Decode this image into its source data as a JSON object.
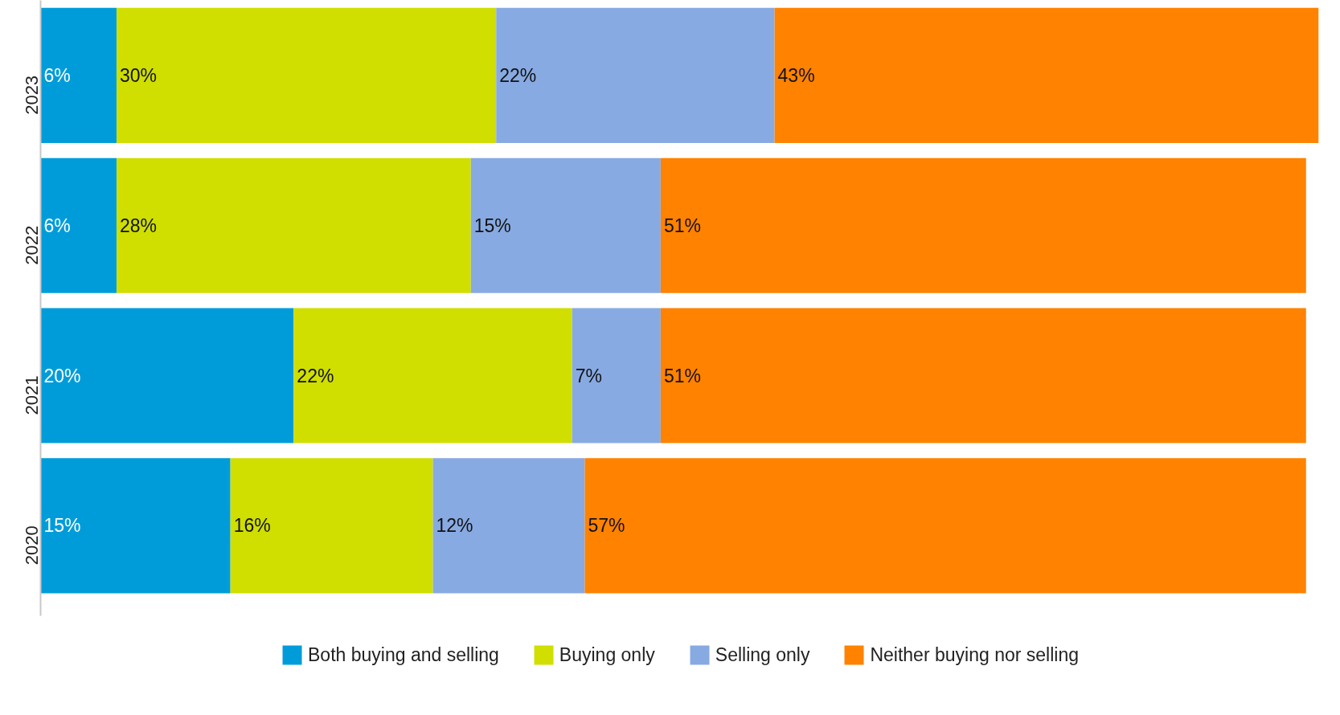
{
  "chart_data": {
    "type": "bar",
    "orientation": "horizontal",
    "stacked": true,
    "legend": "bottom",
    "grid": false,
    "tick_labels": "y",
    "categories": [
      "2023",
      "2022",
      "2021",
      "2020"
    ],
    "series": [
      {
        "name": "Both buying and selling",
        "color": "#009cda",
        "values": [
          6,
          6,
          20,
          15
        ],
        "value_labels": [
          "6%",
          "6%",
          "20%",
          "15%"
        ]
      },
      {
        "name": "Buying only",
        "color": "#d0de00",
        "values": [
          30,
          28,
          22,
          16
        ],
        "value_labels": [
          "30%",
          "28%",
          "22%",
          "16%"
        ]
      },
      {
        "name": "Selling only",
        "color": "#88aae2",
        "values": [
          22,
          15,
          7,
          12
        ],
        "value_labels": [
          "22%",
          "15%",
          "7%",
          "12%"
        ]
      },
      {
        "name": "Neither buying nor selling",
        "color": "#ff8200",
        "values": [
          43,
          51,
          51,
          57
        ],
        "value_labels": [
          "43%",
          "51%",
          "51%",
          "57%"
        ]
      }
    ]
  }
}
